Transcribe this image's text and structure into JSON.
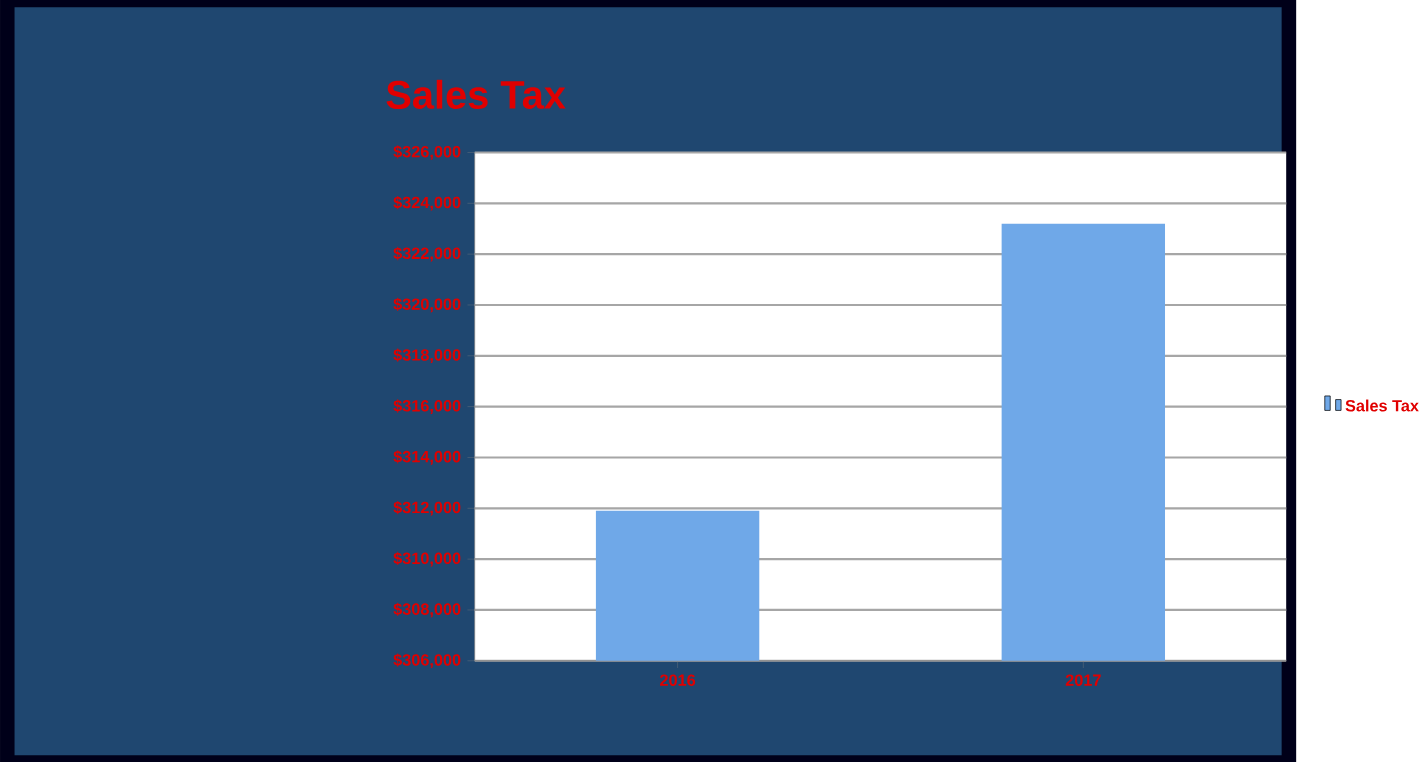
{
  "chart_data": {
    "type": "bar",
    "title": "Sales Tax",
    "categories": [
      "2016",
      "2017"
    ],
    "series": [
      {
        "name": "Sales Tax",
        "color": "#6fa8e8",
        "values": [
          311900,
          323200
        ]
      }
    ],
    "ylim": [
      306000,
      326000
    ],
    "yticks": [
      {
        "value": 306000,
        "label": "$306,000"
      },
      {
        "value": 308000,
        "label": "$308,000"
      },
      {
        "value": 310000,
        "label": "$310,000"
      },
      {
        "value": 312000,
        "label": "$312,000"
      },
      {
        "value": 314000,
        "label": "$314,000"
      },
      {
        "value": 316000,
        "label": "$316,000"
      },
      {
        "value": 318000,
        "label": "$318,000"
      },
      {
        "value": 320000,
        "label": "$320,000"
      },
      {
        "value": 322000,
        "label": "$322,000"
      },
      {
        "value": 324000,
        "label": "$324,000"
      },
      {
        "value": 326000,
        "label": "$326,000"
      }
    ],
    "grid": "y",
    "legend": "right"
  }
}
